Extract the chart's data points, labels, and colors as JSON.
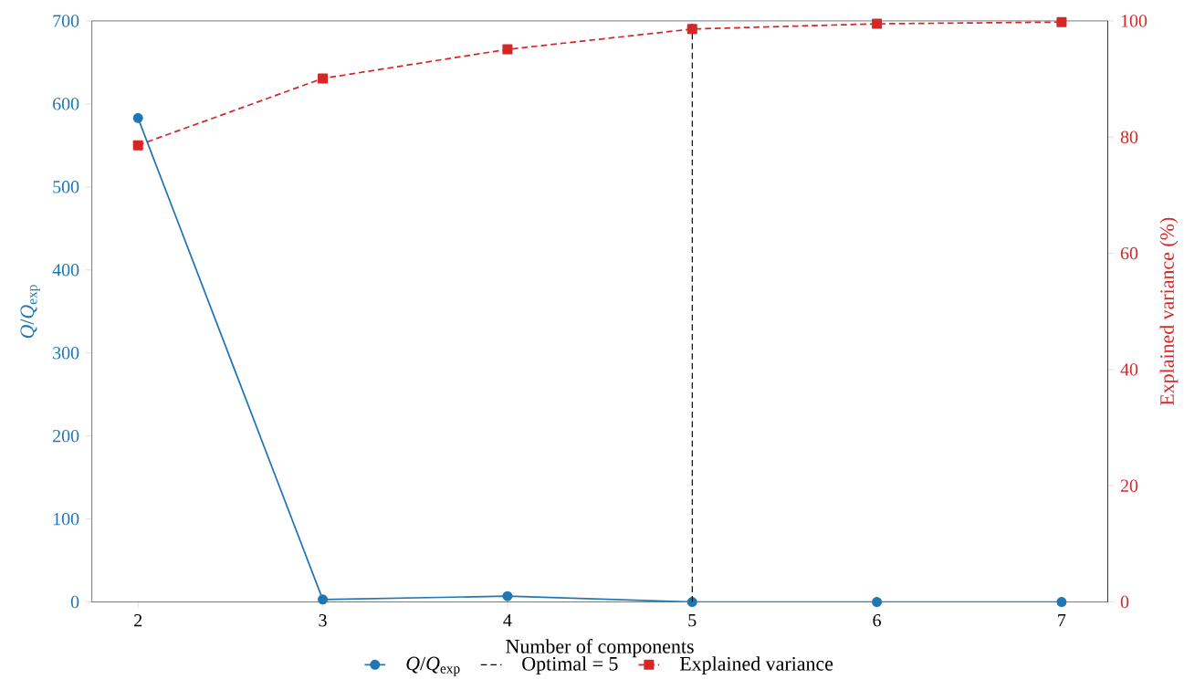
{
  "chart_data": {
    "type": "line",
    "xlabel": "Number of components",
    "ylabel": "*Q*/*Q*$_{exp}$",
    "y2label": "Explained variance (%)",
    "x": [
      2,
      3,
      4,
      5,
      6,
      7
    ],
    "series": [
      {
        "name": "*Q*/*Q*$_{exp}$",
        "color": "#1f77b4",
        "values": [
          583,
          3,
          7,
          0,
          0,
          0
        ],
        "marker": "circle",
        "line_style": "solid"
      },
      {
        "name": "Explained variance",
        "color": "#d62728",
        "values": [
          78.6,
          90.1,
          95.1,
          98.6,
          99.5,
          99.8
        ],
        "marker": "square",
        "line_style": "dashed",
        "axis": "y2"
      }
    ],
    "xlim": [
      1.75,
      7.25
    ],
    "ylim": [
      0,
      700
    ],
    "y2lim": [
      0,
      100
    ],
    "xticks": [
      2,
      3,
      4,
      5,
      6,
      7
    ],
    "yticks": [
      0,
      100,
      200,
      300,
      400,
      500,
      600,
      700
    ],
    "y2ticks": [
      0,
      20,
      40,
      60,
      80,
      100
    ],
    "ref_lines": [
      {
        "axis": "x",
        "value": 5,
        "label": "Optimal = 5",
        "color": "#000000",
        "line_style": "dashed"
      }
    ],
    "legend": "bottom"
  }
}
